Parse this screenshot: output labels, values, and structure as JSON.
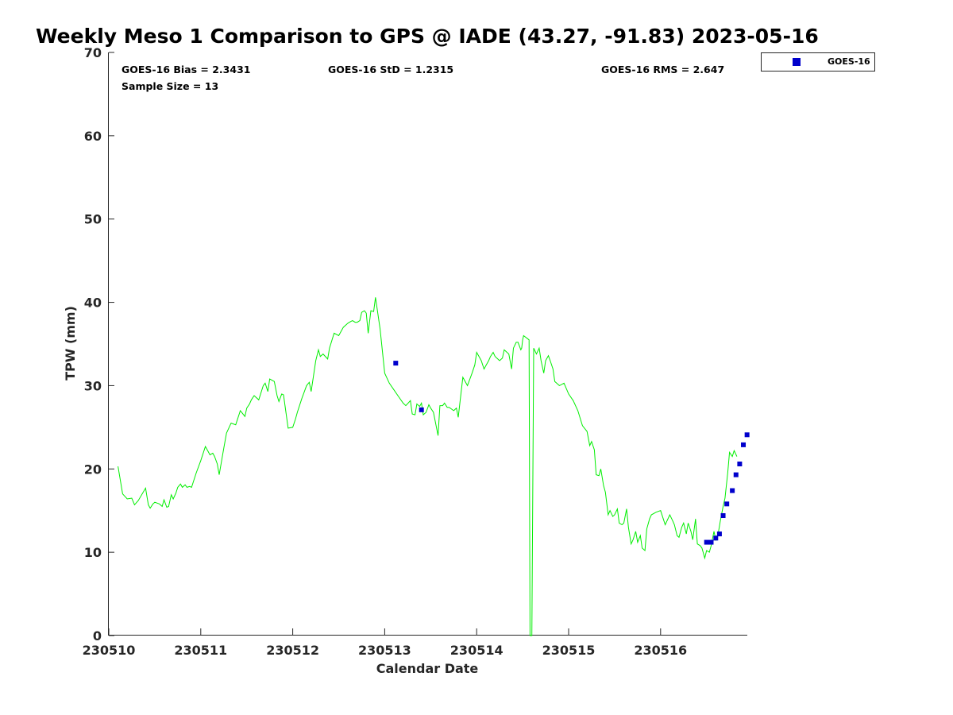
{
  "chart_data": {
    "type": "line",
    "title": "Weekly Meso 1 Comparison to GPS @ IADE (43.27, -91.83) 2023-05-16",
    "xlabel": "Calendar Date",
    "ylabel": "TPW (mm)",
    "x_tick_labels": [
      "230510",
      "230511",
      "230512",
      "230513",
      "230514",
      "230515",
      "230516"
    ],
    "y_ticks": [
      0,
      10,
      20,
      30,
      40,
      50,
      60,
      70
    ],
    "ylim": [
      0,
      70
    ],
    "grid": false,
    "legend_position": "top-right outside",
    "stats": {
      "bias": "GOES-16 Bias = 2.3431",
      "std": "GOES-16 StD = 1.2315",
      "rms": "GOES-16 RMS = 2.647",
      "sample": "Sample Size = 13"
    },
    "series": [
      {
        "kind": "line",
        "color": "#00ee00",
        "x_days_from_230510": [
          0.1,
          0.12,
          0.15,
          0.2,
          0.25,
          0.28,
          0.32,
          0.4,
          0.43,
          0.45,
          0.48,
          0.5,
          0.55,
          0.58,
          0.6,
          0.63,
          0.65,
          0.68,
          0.7,
          0.73,
          0.75,
          0.78,
          0.8,
          0.83,
          0.85,
          0.88,
          0.9,
          0.95,
          1.0,
          1.05,
          1.1,
          1.13,
          1.15,
          1.18,
          1.2,
          1.25,
          1.28,
          1.33,
          1.38,
          1.43,
          1.48,
          1.5,
          1.53,
          1.55,
          1.58,
          1.63,
          1.68,
          1.7,
          1.73,
          1.75,
          1.8,
          1.83,
          1.85,
          1.88,
          1.9,
          1.95,
          2.0,
          2.03,
          2.05,
          2.1,
          2.15,
          2.18,
          2.2,
          2.25,
          2.28,
          2.3,
          2.33,
          2.38,
          2.4,
          2.45,
          2.5,
          2.55,
          2.6,
          2.63,
          2.65,
          2.68,
          2.7,
          2.73,
          2.75,
          2.78,
          2.8,
          2.82,
          2.85,
          2.88,
          2.9,
          2.95,
          3.0,
          3.05,
          3.1,
          3.15,
          3.2,
          3.23,
          3.28,
          3.3,
          3.33,
          3.35,
          3.38,
          3.4,
          3.42,
          3.45,
          3.48,
          3.5,
          3.53,
          3.58,
          3.6,
          3.63,
          3.65,
          3.68,
          3.7,
          3.75,
          3.78,
          3.8,
          3.85,
          3.9,
          3.95,
          3.98,
          4.0,
          4.03,
          4.05,
          4.08,
          4.1,
          4.13,
          4.15,
          4.18,
          4.2,
          4.23,
          4.25,
          4.28,
          4.3,
          4.35,
          4.38,
          4.4,
          4.43,
          4.45,
          4.48,
          4.49,
          4.5,
          4.51,
          4.57,
          4.58,
          4.6,
          4.62,
          4.65,
          4.68,
          4.7,
          4.73,
          4.75,
          4.78,
          4.8,
          4.83,
          4.85,
          4.9,
          4.95,
          5.0,
          5.05,
          5.1,
          5.15,
          5.2,
          5.23,
          5.25,
          5.28,
          5.3,
          5.33,
          5.35,
          5.38,
          5.4,
          5.43,
          5.45,
          5.48,
          5.5,
          5.53,
          5.55,
          5.58,
          5.6,
          5.63,
          5.65,
          5.68,
          5.7,
          5.73,
          5.75,
          5.78,
          5.8,
          5.83,
          5.85,
          5.88,
          5.9,
          5.95,
          6.0,
          6.05,
          6.1,
          6.13,
          6.15,
          6.18,
          6.2,
          6.23,
          6.25,
          6.28,
          6.3,
          6.33,
          6.35,
          6.38,
          6.4,
          6.43,
          6.45,
          6.48,
          6.5,
          6.53,
          6.55,
          6.58,
          6.6,
          6.63,
          6.65,
          6.68,
          6.7,
          6.73,
          6.75,
          6.78,
          6.8,
          6.83,
          6.85,
          6.88,
          6.9,
          6.93,
          6.95
        ],
        "y": [
          20.3,
          19.0,
          17.0,
          16.4,
          16.5,
          15.7,
          16.2,
          17.7,
          15.7,
          15.3,
          15.8,
          16.0,
          15.8,
          15.5,
          16.3,
          15.4,
          15.5,
          16.9,
          16.4,
          17.1,
          17.8,
          18.2,
          17.8,
          18.1,
          17.8,
          17.9,
          17.8,
          19.5,
          21.0,
          22.7,
          21.7,
          21.9,
          21.5,
          20.6,
          19.3,
          22.5,
          24.3,
          25.5,
          25.3,
          27.0,
          26.3,
          27.3,
          27.8,
          28.3,
          28.8,
          28.3,
          30.0,
          30.3,
          29.3,
          30.8,
          30.5,
          28.8,
          28.1,
          29.0,
          28.9,
          24.9,
          25.0,
          26.0,
          26.8,
          28.5,
          30.0,
          30.4,
          29.3,
          33.0,
          34.3,
          33.5,
          33.8,
          33.2,
          34.5,
          36.3,
          36.0,
          37.0,
          37.5,
          37.7,
          37.8,
          37.6,
          37.6,
          37.8,
          38.8,
          39.0,
          38.7,
          36.3,
          39.0,
          38.9,
          40.6,
          36.8,
          31.5,
          30.3,
          29.5,
          28.7,
          27.9,
          27.6,
          28.2,
          26.6,
          26.5,
          27.8,
          27.5,
          27.9,
          26.5,
          26.8,
          27.7,
          27.3,
          26.8,
          24.0,
          27.6,
          27.6,
          27.9,
          27.4,
          27.4,
          27.0,
          27.3,
          26.2,
          31.0,
          30.0,
          31.5,
          32.5,
          34.0,
          33.4,
          33.0,
          32.0,
          32.4,
          33.0,
          33.5,
          34.0,
          33.5,
          33.2,
          33.0,
          33.3,
          34.3,
          33.8,
          32.0,
          34.5,
          35.2,
          35.2,
          34.3,
          34.5,
          35.5,
          36.0,
          35.5,
          0.0,
          0.0,
          34.5,
          33.8,
          34.5,
          33.0,
          31.5,
          33.0,
          33.6,
          33.0,
          32.0,
          30.5,
          30.0,
          30.3,
          29.0,
          28.2,
          27.0,
          25.2,
          24.5,
          22.8,
          23.3,
          22.3,
          19.3,
          19.2,
          20.0,
          18.0,
          17.2,
          14.5,
          15.0,
          14.3,
          14.5,
          15.2,
          13.5,
          13.3,
          13.5,
          15.2,
          13.0,
          11.0,
          11.5,
          12.5,
          11.2,
          12.0,
          10.5,
          10.2,
          12.8,
          14.0,
          14.5,
          14.8,
          15.0,
          13.3,
          14.5,
          13.8,
          13.3,
          12.0,
          11.8,
          13.0,
          13.5,
          12.2,
          13.5,
          12.5,
          11.5,
          14.0,
          11.0,
          10.8,
          10.5,
          9.3,
          10.2,
          10.0,
          10.8,
          12.5,
          11.5,
          12.5,
          13.8,
          15.5,
          16.5,
          19.5,
          22.0,
          21.5,
          22.2,
          21.5
        ]
      },
      {
        "name": "GOES-16",
        "kind": "scatter",
        "color": "#0000cc",
        "x_days_from_230510": [
          3.12,
          3.4,
          6.5,
          6.55,
          6.6,
          6.64,
          6.68,
          6.72,
          6.78,
          6.82,
          6.86,
          6.9,
          6.94
        ],
        "y": [
          32.7,
          27.1,
          11.2,
          11.2,
          11.7,
          12.2,
          14.4,
          15.8,
          17.4,
          19.3,
          20.6,
          22.9,
          24.1
        ]
      }
    ]
  }
}
